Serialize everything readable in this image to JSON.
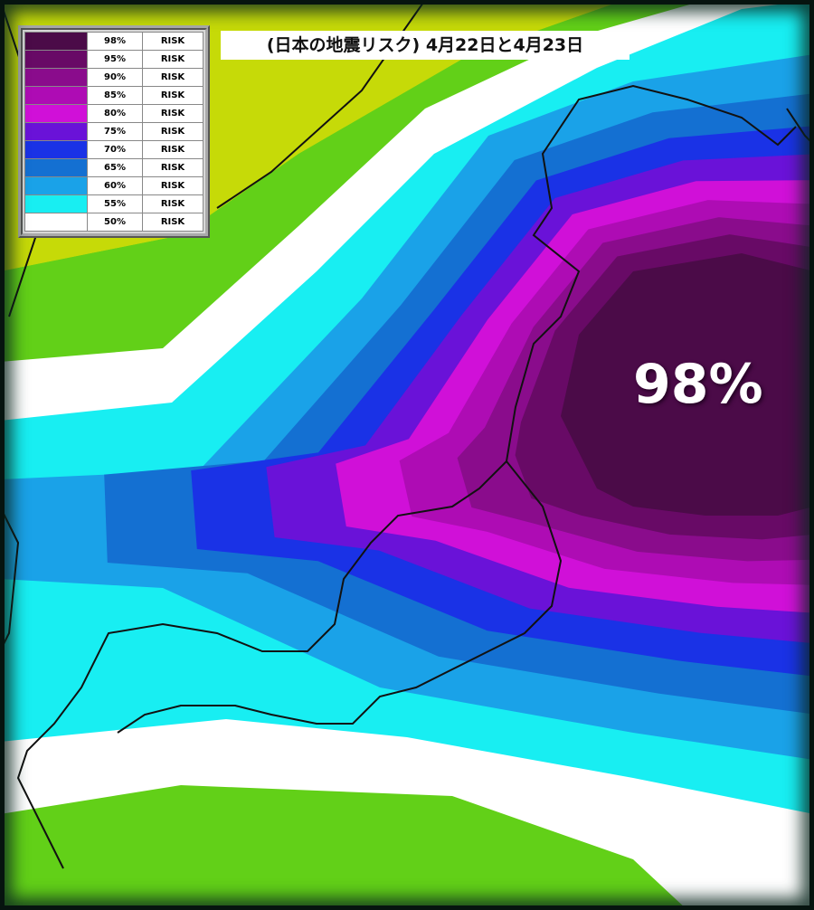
{
  "header": {
    "title": "(日本の地震リスク)  4月22日と4月23日"
  },
  "legend": {
    "rows": [
      {
        "color": "#4b0b48",
        "percent": "98%",
        "label": "RISK"
      },
      {
        "color": "#680a66",
        "percent": "95%",
        "label": "RISK"
      },
      {
        "color": "#8a0c8c",
        "percent": "90%",
        "label": "RISK"
      },
      {
        "color": "#ae0cb4",
        "percent": "85%",
        "label": "RISK"
      },
      {
        "color": "#d010d8",
        "percent": "80%",
        "label": "RISK"
      },
      {
        "color": "#6a12d8",
        "percent": "75%",
        "label": "RISK"
      },
      {
        "color": "#1a32e6",
        "percent": "70%",
        "label": "RISK"
      },
      {
        "color": "#1470d2",
        "percent": "65%",
        "label": "RISK"
      },
      {
        "color": "#1aa2e8",
        "percent": "60%",
        "label": "RISK"
      },
      {
        "color": "#18eef2",
        "percent": "55%",
        "label": "RISK"
      },
      {
        "color": "#ffffff",
        "percent": "50%",
        "label": "RISK"
      }
    ]
  },
  "annotation": "98%"
}
